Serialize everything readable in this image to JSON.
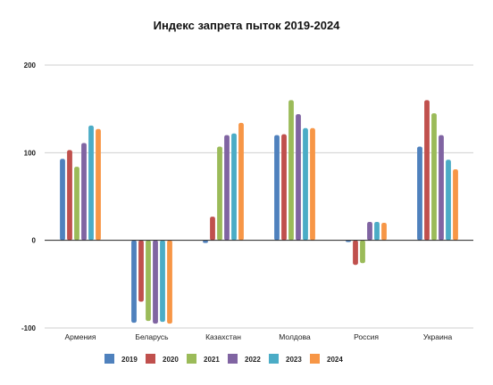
{
  "chart_data": {
    "type": "bar",
    "title": "Индекс запрета пыток 2019-2024",
    "xlabel": "",
    "ylabel": "",
    "ylim": [
      -100,
      200
    ],
    "yticks": [
      200,
      100,
      0,
      -100
    ],
    "ytick_labels": [
      "200",
      "100",
      "0",
      "-100"
    ],
    "grid": true,
    "legend_position": "bottom",
    "categories": [
      "Армения",
      "Беларусь",
      "Казахстан",
      "Молдова",
      "Россия",
      "Украина"
    ],
    "series": [
      {
        "name": "2019",
        "color": "#4F81BD",
        "values": [
          93,
          -94,
          -3,
          120,
          -2,
          107
        ]
      },
      {
        "name": "2020",
        "color": "#C0504D",
        "values": [
          103,
          -70,
          27,
          121,
          -28,
          160
        ]
      },
      {
        "name": "2021",
        "color": "#9BBB59",
        "values": [
          84,
          -92,
          107,
          160,
          -26,
          145
        ]
      },
      {
        "name": "2022",
        "color": "#8064A2",
        "values": [
          111,
          -95,
          120,
          144,
          21,
          120
        ]
      },
      {
        "name": "2023",
        "color": "#4BACC6",
        "values": [
          131,
          -93,
          122,
          128,
          21,
          92
        ]
      },
      {
        "name": "2024",
        "color": "#F79646",
        "values": [
          127,
          -95,
          134,
          128,
          20,
          81
        ]
      }
    ]
  }
}
